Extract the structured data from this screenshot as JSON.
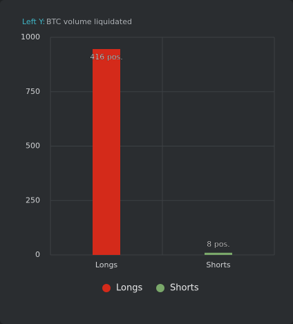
{
  "chart_data": {
    "type": "bar",
    "y_axis_prefix": "Left Y:",
    "ylabel": "BTC volume liquidated",
    "categories": [
      "Longs",
      "Shorts"
    ],
    "values": [
      946,
      10
    ],
    "colors": [
      "#d42a1a",
      "#7aa86a"
    ],
    "bar_annotations": [
      "416 pos.",
      "8 pos."
    ],
    "ylim": [
      0,
      1000
    ],
    "yticks": [
      0,
      250,
      500,
      750,
      1000
    ],
    "grid": true,
    "legend": "bottom"
  }
}
